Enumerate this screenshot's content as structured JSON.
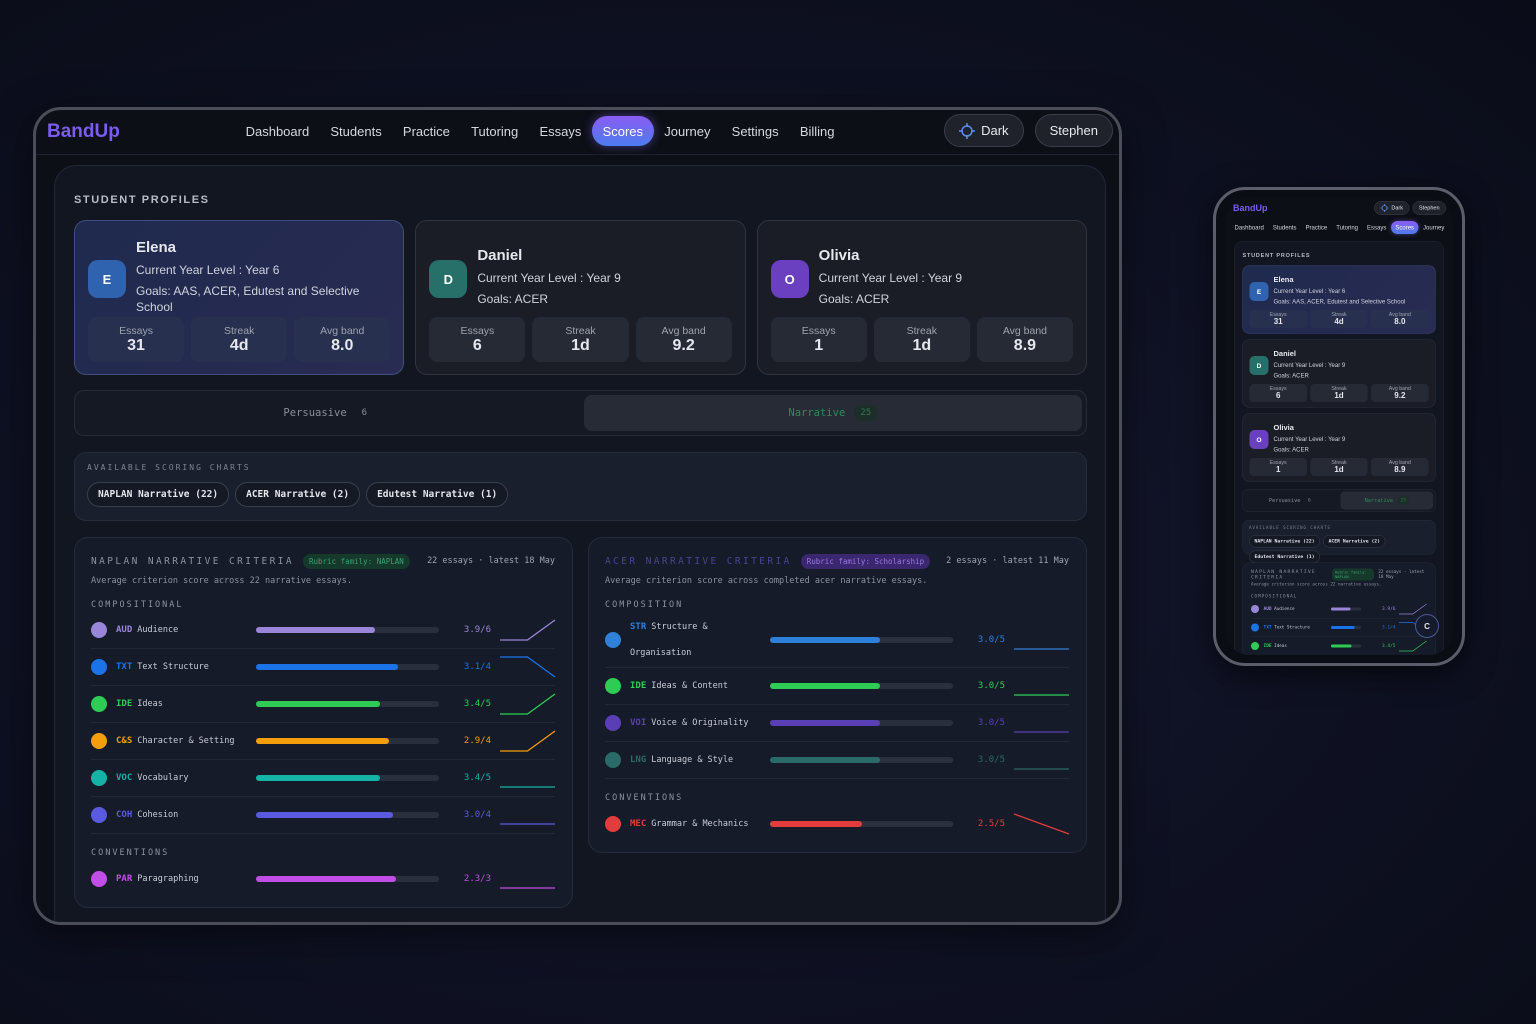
{
  "brand": "BandUp",
  "nav": [
    {
      "label": "Dashboard",
      "active": false
    },
    {
      "label": "Students",
      "active": false
    },
    {
      "label": "Practice",
      "active": false
    },
    {
      "label": "Tutoring",
      "active": false
    },
    {
      "label": "Essays",
      "active": false
    },
    {
      "label": "Scores",
      "active": true
    },
    {
      "label": "Journey",
      "active": false
    },
    {
      "label": "Settings",
      "active": false
    },
    {
      "label": "Billing",
      "active": false
    }
  ],
  "theme_button": "Dark",
  "user": "Stephen",
  "section_title": "STUDENT PROFILES",
  "students": [
    {
      "initial": "E",
      "name": "Elena",
      "year": "Current Year Level : Year 6",
      "goals": "Goals: AAS, ACER, Edutest and Selective School",
      "color": "#2f63b0",
      "selected": true,
      "stats": [
        {
          "label": "Essays",
          "value": "31"
        },
        {
          "label": "Streak",
          "value": "4d"
        },
        {
          "label": "Avg band",
          "value": "8.0"
        }
      ]
    },
    {
      "initial": "D",
      "name": "Daniel",
      "year": "Current Year Level : Year 9",
      "goals": "Goals: ACER",
      "color": "#27706a",
      "selected": false,
      "stats": [
        {
          "label": "Essays",
          "value": "6"
        },
        {
          "label": "Streak",
          "value": "1d"
        },
        {
          "label": "Avg band",
          "value": "9.2"
        }
      ]
    },
    {
      "initial": "O",
      "name": "Olivia",
      "year": "Current Year Level : Year 9",
      "goals": "Goals: ACER",
      "color": "#6a3fc0",
      "selected": false,
      "stats": [
        {
          "label": "Essays",
          "value": "1"
        },
        {
          "label": "Streak",
          "value": "1d"
        },
        {
          "label": "Avg band",
          "value": "8.9"
        }
      ]
    }
  ],
  "tabs": [
    {
      "label": "Persuasive",
      "count": "6",
      "active": false
    },
    {
      "label": "Narrative",
      "count": "25",
      "active": true
    }
  ],
  "scoring_title": "AVAILABLE SCORING CHARTS",
  "scoring_charts": [
    "NAPLAN Narrative (22)",
    "ACER Narrative (2)",
    "Edutest Narrative (1)"
  ],
  "panels": [
    {
      "title": "NAPLAN NARRATIVE CRITERIA",
      "family": "Rubric family: NAPLAN",
      "family_color": "#3aa070",
      "family_bg": "#153a2c",
      "title_color": "#8d92a2",
      "meta": "22 essays · latest 18 May",
      "description": "Average criterion score across 22 narrative essays.",
      "groups": [
        {
          "title": "COMPOSITIONAL",
          "criteria": [
            {
              "code": "AUD",
              "name": "Audience",
              "score": 3.9,
              "max": 6,
              "score_label": "3.9/6",
              "color": "#9a86d8",
              "trend": [
                3.0,
                3.0,
                3.9
              ]
            },
            {
              "code": "TXT",
              "name": "Text Structure",
              "score": 3.1,
              "max": 4,
              "score_label": "3.1/4",
              "color": "#1a74e8",
              "trend": [
                3.9,
                3.9,
                3.1
              ]
            },
            {
              "code": "IDE",
              "name": "Ideas",
              "score": 3.4,
              "max": 5,
              "score_label": "3.4/5",
              "color": "#2ecc55",
              "trend": [
                3.3,
                3.3,
                3.4
              ]
            },
            {
              "code": "C&S",
              "name": "Character & Setting",
              "score": 2.9,
              "max": 4,
              "score_label": "2.9/4",
              "color": "#f59e0b",
              "trend": [
                2.5,
                2.5,
                2.9
              ]
            },
            {
              "code": "VOC",
              "name": "Vocabulary",
              "score": 3.4,
              "max": 5,
              "score_label": "3.4/5",
              "color": "#14b3a6",
              "trend": [
                3.4,
                3.4,
                3.4
              ]
            },
            {
              "code": "COH",
              "name": "Cohesion",
              "score": 3.0,
              "max": 4,
              "score_label": "3.0/4",
              "color": "#5a5ae0",
              "trend": [
                3.0,
                3.0,
                3.0
              ]
            }
          ]
        },
        {
          "title": "CONVENTIONS",
          "criteria": [
            {
              "code": "PAR",
              "name": "Paragraphing",
              "score": 2.3,
              "max": 3,
              "score_label": "2.3/3",
              "color": "#c24ee8",
              "trend": [
                2.3,
                2.3,
                2.3
              ]
            }
          ]
        }
      ]
    },
    {
      "title": "ACER NARRATIVE CRITERIA",
      "family": "Rubric family: Scholarship",
      "family_color": "#9a78e0",
      "family_bg": "#3a2770",
      "title_color": "#4c4294",
      "meta": "2 essays · latest 11 May",
      "description": "Average criterion score across completed acer narrative essays.",
      "groups": [
        {
          "title": "COMPOSITION",
          "criteria": [
            {
              "code": "STR",
              "name": "Structure & Organisation",
              "score": 3.0,
              "max": 5,
              "score_label": "3.0/5",
              "color": "#2f80d8",
              "trend": [
                3.0,
                3.0
              ]
            },
            {
              "code": "IDE",
              "name": "Ideas & Content",
              "score": 3.0,
              "max": 5,
              "score_label": "3.0/5",
              "color": "#2ecc55",
              "trend": [
                3.0,
                3.0
              ]
            },
            {
              "code": "VOI",
              "name": "Voice & Originality",
              "score": 3.0,
              "max": 5,
              "score_label": "3.0/5",
              "color": "#5a3fb4",
              "trend": [
                3.0,
                3.0
              ]
            },
            {
              "code": "LNG",
              "name": "Language & Style",
              "score": 3.0,
              "max": 5,
              "score_label": "3.0/5",
              "color": "#2a6a68",
              "trend": [
                3.0,
                3.0
              ]
            }
          ]
        },
        {
          "title": "CONVENTIONS",
          "criteria": [
            {
              "code": "MEC",
              "name": "Grammar & Mechanics",
              "score": 2.5,
              "max": 5,
              "score_label": "2.5/5",
              "color": "#e23c3c",
              "trend": [
                3.0,
                2.5
              ]
            }
          ]
        }
      ]
    }
  ],
  "phone_avatar": "C"
}
